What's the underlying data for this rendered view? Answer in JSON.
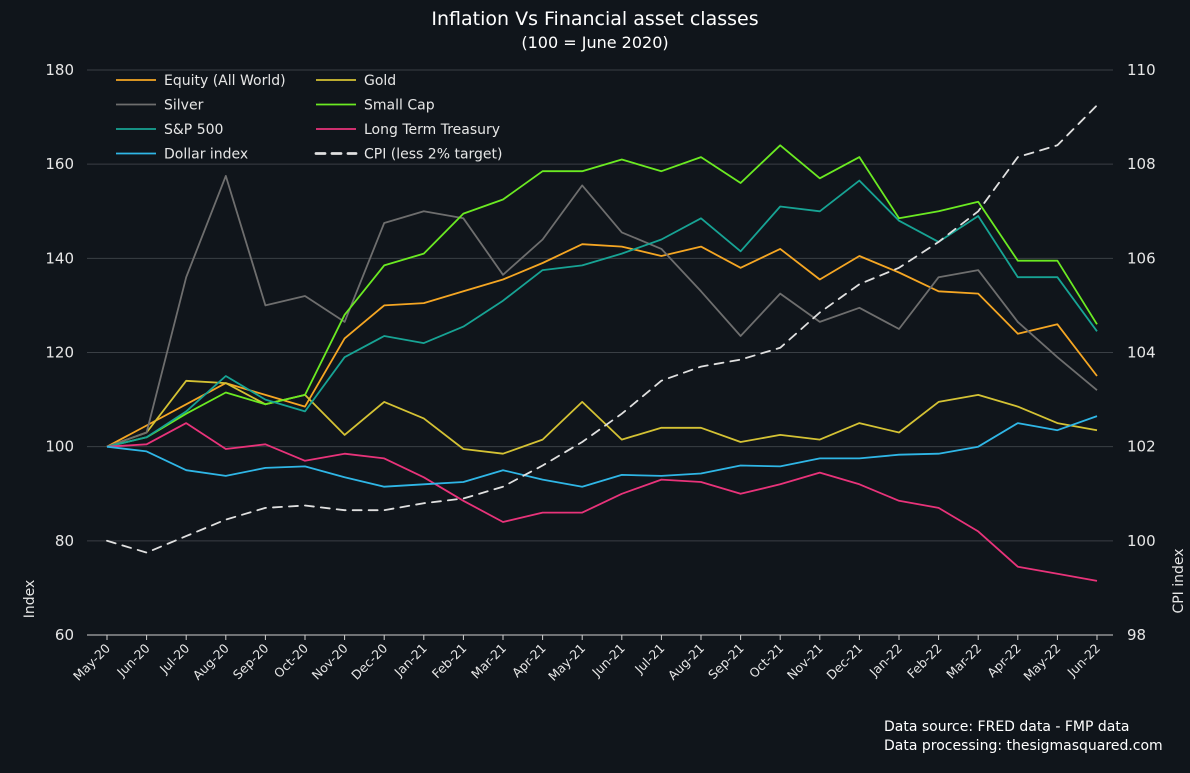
{
  "chart_data": {
    "type": "line",
    "title": "Inflation Vs Financial asset classes",
    "subtitle": "(100 = June 2020)",
    "ylabel": "Index",
    "y2label": "CPI index",
    "ylim": [
      60,
      180
    ],
    "yticks": [
      60,
      80,
      100,
      120,
      140,
      160,
      180
    ],
    "y2lim": [
      98,
      110
    ],
    "y2ticks": [
      98,
      100,
      102,
      104,
      106,
      108,
      110
    ],
    "grid": true,
    "legend_position": "top-left",
    "categories": [
      "May-20",
      "Jun-20",
      "Jul-20",
      "Aug-20",
      "Sep-20",
      "Oct-20",
      "Nov-20",
      "Dec-20",
      "Jan-21",
      "Feb-21",
      "Mar-21",
      "Apr-21",
      "May-21",
      "Jun-21",
      "Jul-21",
      "Aug-21",
      "Sep-21",
      "Oct-21",
      "Nov-21",
      "Dec-21",
      "Jan-22",
      "Feb-22",
      "Mar-22",
      "Apr-22",
      "May-22",
      "Jun-22"
    ],
    "series": [
      {
        "name": "Equity (All World)",
        "axis": "left",
        "color": "#f5a623",
        "dash": false,
        "values": [
          100,
          104.5,
          109,
          113.5,
          111,
          108.5,
          123,
          130,
          130.5,
          133,
          135.5,
          139,
          143,
          142.5,
          140.5,
          142.5,
          138,
          142,
          135.5,
          140.5,
          137,
          133,
          132.5,
          124,
          126,
          115
        ]
      },
      {
        "name": "Gold",
        "axis": "left",
        "color": "#d4c234",
        "dash": false,
        "values": [
          100,
          103,
          114,
          113.5,
          109,
          111,
          102.5,
          109.5,
          106,
          99.5,
          98.5,
          101.5,
          109.5,
          101.5,
          104,
          104,
          101,
          102.5,
          101.5,
          105,
          103,
          109.5,
          111,
          108.5,
          105,
          103.5
        ]
      },
      {
        "name": "Silver",
        "axis": "left",
        "color": "#6e6e6e",
        "dash": false,
        "values": [
          100,
          103,
          136,
          157.5,
          130,
          132,
          126.5,
          147.5,
          150,
          148.5,
          136.5,
          144,
          155.5,
          145.5,
          142,
          133,
          123.5,
          132.5,
          126.5,
          129.5,
          125,
          136,
          137.5,
          126.5,
          119,
          112
        ]
      },
      {
        "name": "Small Cap",
        "axis": "left",
        "color": "#6bea22",
        "dash": false,
        "values": [
          100,
          102,
          107,
          111.5,
          109,
          111,
          128,
          138.5,
          141,
          149.5,
          152.5,
          158.5,
          158.5,
          161,
          158.5,
          161.5,
          156,
          164,
          157,
          161.5,
          148.5,
          150,
          152,
          139.5,
          139.5,
          126
        ]
      },
      {
        "name": "S&P 500",
        "axis": "left",
        "color": "#17a394",
        "dash": false,
        "values": [
          100,
          102,
          107.5,
          115,
          110,
          107.5,
          119,
          123.5,
          122,
          125.5,
          131,
          137.5,
          138.5,
          141,
          144,
          148.5,
          141.5,
          151,
          150,
          156.5,
          148,
          143.5,
          149,
          136,
          136,
          124.5
        ]
      },
      {
        "name": "Long Term Treasury",
        "axis": "left",
        "color": "#e8337a",
        "dash": false,
        "values": [
          100,
          100.5,
          105,
          99.5,
          100.5,
          97,
          98.5,
          97.5,
          93.5,
          88.5,
          84,
          86,
          86,
          90,
          93,
          92.5,
          90,
          92,
          94.5,
          92,
          88.5,
          87,
          82,
          74.5,
          73,
          71.5
        ]
      },
      {
        "name": "Dollar index",
        "axis": "left",
        "color": "#2fb6e6",
        "dash": false,
        "values": [
          100,
          99,
          95,
          93.8,
          95.5,
          95.8,
          93.5,
          91.5,
          92,
          92.5,
          95,
          93,
          91.5,
          94,
          93.8,
          94.3,
          96,
          95.8,
          97.5,
          97.5,
          98.3,
          98.5,
          100,
          105,
          103.5,
          106.5
        ]
      },
      {
        "name": "CPI (less 2% target)",
        "axis": "right",
        "color": "#e0e0e0",
        "dash": true,
        "values": [
          100,
          99.75,
          100.1,
          100.45,
          100.7,
          100.75,
          100.65,
          100.65,
          100.8,
          100.9,
          101.15,
          101.6,
          102.1,
          102.7,
          103.4,
          103.7,
          103.85,
          104.1,
          104.85,
          105.45,
          105.8,
          106.35,
          107.0,
          108.15,
          108.4,
          109.25
        ]
      }
    ]
  },
  "source": {
    "line1": "Data source: FRED data - FMP data",
    "line2": "Data processing: thesigmasquared.com"
  }
}
